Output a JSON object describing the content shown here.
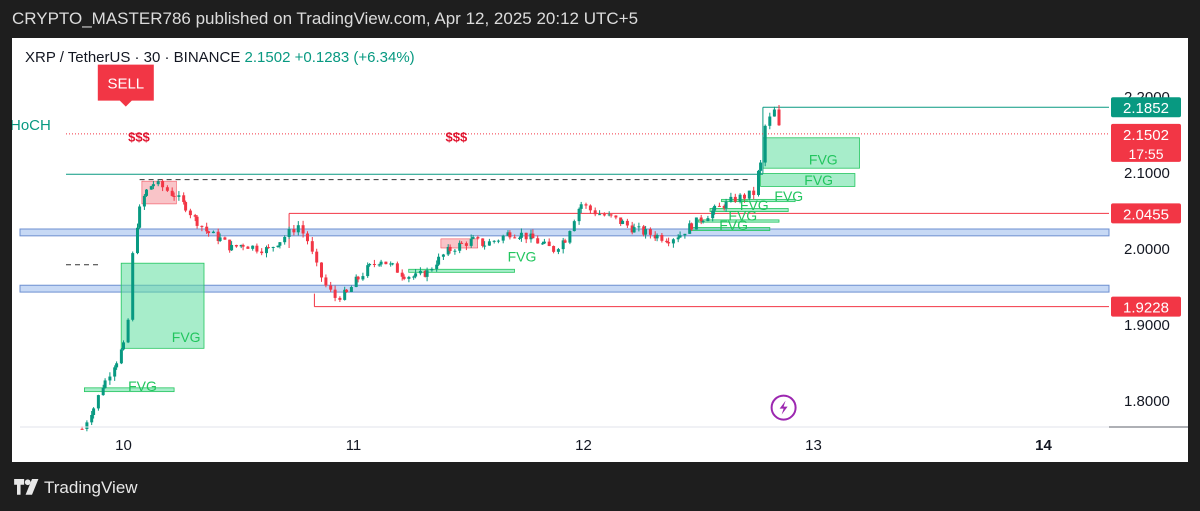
{
  "header": {
    "publish_line": "CRYPTO_MASTER786 published on TradingView.com, Apr 12, 2025 20:12 UTC+5"
  },
  "legend": {
    "symbol": "XRP / TetherUS · 30 · BINANCE",
    "last": "2.1502",
    "change": "+0.1283 (+6.34%)"
  },
  "footer": {
    "brand": "TradingView"
  },
  "colors": {
    "up": "#089981",
    "down": "#f23645",
    "fvg": "#5fdf9f",
    "zone": "#c7d9f5",
    "text": "#131722"
  },
  "chart_data": {
    "type": "candlestick",
    "symbol": "XRP / TetherUS",
    "timeframe": "30",
    "exchange": "BINANCE",
    "y_ticks": [
      {
        "value": 2.2,
        "label": "2.2000"
      },
      {
        "value": 2.1,
        "label": "2.1000"
      },
      {
        "value": 2.0,
        "label": "2.0000"
      },
      {
        "value": 1.9,
        "label": "1.9000"
      },
      {
        "value": 1.8,
        "label": "1.8000"
      }
    ],
    "x_ticks": [
      {
        "label": "10",
        "bold": false
      },
      {
        "label": "11",
        "bold": false
      },
      {
        "label": "12",
        "bold": false
      },
      {
        "label": "13",
        "bold": false
      },
      {
        "label": "14",
        "bold": true
      }
    ],
    "price_tags": [
      {
        "label": "2.1852",
        "value": 2.1852,
        "color": "#089981"
      },
      {
        "label": "2.1502",
        "value": 2.1502,
        "color": "#f23645",
        "countdown": "17:55"
      },
      {
        "label": "2.0455",
        "value": 2.0455,
        "color": "#f23645"
      },
      {
        "label": "1.9228",
        "value": 1.9228,
        "color": "#f23645"
      }
    ],
    "close_path": [
      [
        9.82,
        1.762
      ],
      [
        9.87,
        1.79
      ],
      [
        9.92,
        1.825
      ],
      [
        9.97,
        1.852
      ],
      [
        10.0,
        1.87
      ],
      [
        10.02,
        1.905
      ],
      [
        10.04,
        1.99
      ],
      [
        10.07,
        2.05
      ],
      [
        10.1,
        2.075
      ],
      [
        10.13,
        2.085
      ],
      [
        10.17,
        2.08
      ],
      [
        10.22,
        2.07
      ],
      [
        10.27,
        2.055
      ],
      [
        10.32,
        2.035
      ],
      [
        10.37,
        2.02
      ],
      [
        10.42,
        2.012
      ],
      [
        10.47,
        2.0
      ],
      [
        10.52,
        2.005
      ],
      [
        10.58,
        2.0
      ],
      [
        10.63,
        1.998
      ],
      [
        10.68,
        2.01
      ],
      [
        10.72,
        2.02
      ],
      [
        10.76,
        2.03
      ],
      [
        10.8,
        2.01
      ],
      [
        10.84,
        1.975
      ],
      [
        10.88,
        1.95
      ],
      [
        10.92,
        1.935
      ],
      [
        10.97,
        1.94
      ],
      [
        11.02,
        1.96
      ],
      [
        11.07,
        1.975
      ],
      [
        11.12,
        1.985
      ],
      [
        11.17,
        1.975
      ],
      [
        11.22,
        1.965
      ],
      [
        11.27,
        1.962
      ],
      [
        11.32,
        1.968
      ],
      [
        11.37,
        1.985
      ],
      [
        11.42,
        1.998
      ],
      [
        11.47,
        2.005
      ],
      [
        11.52,
        2.01
      ],
      [
        11.57,
        2.005
      ],
      [
        11.63,
        2.012
      ],
      [
        11.68,
        2.02
      ],
      [
        11.73,
        2.018
      ],
      [
        11.78,
        2.012
      ],
      [
        11.83,
        2.003
      ],
      [
        11.87,
        1.998
      ],
      [
        11.92,
        2.012
      ],
      [
        11.96,
        2.04
      ],
      [
        11.99,
        2.058
      ],
      [
        12.03,
        2.05
      ],
      [
        12.07,
        2.045
      ],
      [
        12.12,
        2.04
      ],
      [
        12.17,
        2.033
      ],
      [
        12.22,
        2.025
      ],
      [
        12.27,
        2.02
      ],
      [
        12.32,
        2.016
      ],
      [
        12.37,
        2.012
      ],
      [
        12.42,
        2.018
      ],
      [
        12.47,
        2.03
      ],
      [
        12.52,
        2.04
      ],
      [
        12.57,
        2.05
      ],
      [
        12.62,
        2.058
      ],
      [
        12.66,
        2.065
      ],
      [
        12.7,
        2.068
      ],
      [
        12.74,
        2.072
      ],
      [
        12.77,
        2.11
      ],
      [
        12.79,
        2.16
      ],
      [
        12.81,
        2.17
      ],
      [
        12.83,
        2.18
      ],
      [
        12.85,
        2.158
      ],
      [
        12.86,
        2.1502
      ]
    ],
    "annotations": {
      "sell_label": "SELL",
      "dollar_labels": [
        {
          "text": "$$$",
          "x": 10.02,
          "y": 2.14
        },
        {
          "text": "$$$",
          "x": 11.4,
          "y": 2.14
        }
      ],
      "choch_label": "HoCH",
      "fvg_label": "FVG",
      "fvg_zones": [
        {
          "x1": 9.83,
          "x2": 10.22,
          "y1": 1.811,
          "y2": 1.816
        },
        {
          "x1": 9.99,
          "x2": 10.35,
          "y1": 1.868,
          "y2": 1.98
        },
        {
          "x1": 11.24,
          "x2": 11.7,
          "y1": 1.968,
          "y2": 1.972
        },
        {
          "x1": 12.46,
          "x2": 12.81,
          "y1": 2.023,
          "y2": 2.027
        },
        {
          "x1": 12.5,
          "x2": 12.85,
          "y1": 2.034,
          "y2": 2.037
        },
        {
          "x1": 12.55,
          "x2": 12.89,
          "y1": 2.048,
          "y2": 2.052
        },
        {
          "x1": 12.6,
          "x2": 12.92,
          "y1": 2.061,
          "y2": 2.064
        },
        {
          "x1": 12.77,
          "x2": 13.18,
          "y1": 2.081,
          "y2": 2.098
        },
        {
          "x1": 12.78,
          "x2": 13.2,
          "y1": 2.105,
          "y2": 2.145
        }
      ],
      "fvg_texts": [
        {
          "x": 10.02,
          "y": 1.812
        },
        {
          "x": 10.21,
          "y": 1.876
        },
        {
          "x": 11.67,
          "y": 1.982
        },
        {
          "x": 12.59,
          "y": 2.024
        },
        {
          "x": 12.63,
          "y": 2.036
        },
        {
          "x": 12.68,
          "y": 2.05
        },
        {
          "x": 12.83,
          "y": 2.062
        },
        {
          "x": 12.96,
          "y": 2.083
        },
        {
          "x": 12.98,
          "y": 2.11
        }
      ],
      "supply_boxes": [
        {
          "x1": 10.08,
          "x2": 10.23,
          "y1": 2.058,
          "y2": 2.088
        },
        {
          "x1": 11.38,
          "x2": 11.54,
          "y1": 2.0,
          "y2": 2.012
        }
      ],
      "demand_zones": [
        {
          "y1": 2.016,
          "y2": 2.025
        },
        {
          "y1": 1.942,
          "y2": 1.951
        }
      ],
      "h_lines": [
        {
          "x1": 10.72,
          "x2": 14.55,
          "y": 2.0455,
          "color": "#f23645"
        },
        {
          "x1": 10.83,
          "x2": 14.55,
          "y": 1.9228,
          "color": "#f23645"
        },
        {
          "x1": 12.78,
          "x2": 14.55,
          "y": 2.1852,
          "color": "#089981"
        },
        {
          "x1": 9.75,
          "x2": 12.78,
          "y": 2.097,
          "color": "#089981"
        }
      ],
      "dashed_lines": [
        {
          "x1": 10.07,
          "x2": 12.72,
          "y": 2.09,
          "color": "#333333"
        },
        {
          "x1": 9.75,
          "x2": 9.9,
          "y": 1.978,
          "color": "#333333"
        },
        {
          "x1": 9.75,
          "x2": 14.55,
          "y": 2.1502,
          "color": "#f23645",
          "dotted": true
        }
      ]
    }
  }
}
